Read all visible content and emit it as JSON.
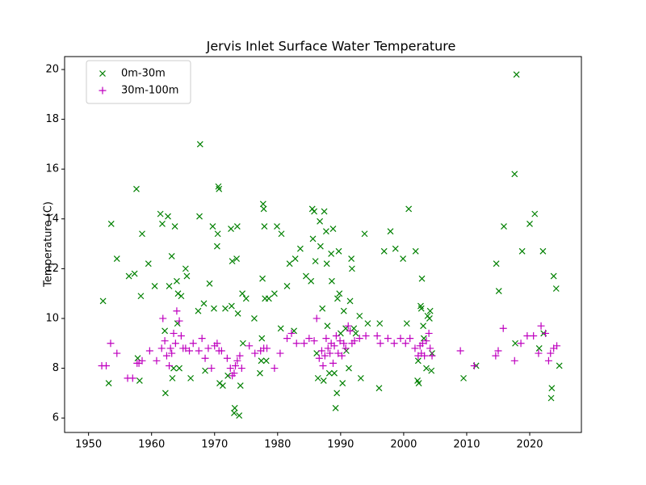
{
  "chart_data": {
    "type": "scatter",
    "title": "Jervis Inlet Surface Water Temperature",
    "y_label": "Temperature (C)",
    "xlim": [
      1946.2,
      2028.2
    ],
    "ylim": [
      5.42,
      20.52
    ],
    "xticks": [
      1950,
      1960,
      1970,
      1980,
      1990,
      2000,
      2010,
      2020
    ],
    "yticks": [
      6,
      8,
      10,
      12,
      14,
      16,
      18,
      20
    ],
    "grid": false,
    "legend": "upper left",
    "series": [
      {
        "name": "0m-30m",
        "color": "#008000",
        "marker": "x",
        "x": [
          1952.3,
          1953.2,
          1953.6,
          1954.5,
          1956.4,
          1957.3,
          1957.6,
          1957.8,
          1958.1,
          1958.5,
          1958.3,
          1959.5,
          1960.5,
          1961.4,
          1961.7,
          1962.1,
          1962.2,
          1962.6,
          1962.8,
          1963.2,
          1963.3,
          1963.5,
          1963.7,
          1964.0,
          1964.1,
          1964.2,
          1964.4,
          1964.7,
          1965.4,
          1965.6,
          1966.2,
          1967.4,
          1967.7,
          1967.6,
          1968.3,
          1968.5,
          1969.2,
          1969.7,
          1969.9,
          1970.4,
          1970.5,
          1970.6,
          1970.7,
          1970.8,
          1971.3,
          1971.7,
          1972.1,
          1972.6,
          1972.7,
          1972.8,
          1973.2,
          1973.1,
          1973.5,
          1973.6,
          1973.7,
          1973.9,
          1974.1,
          1974.4,
          1974.5,
          1975.0,
          1976.3,
          1977.2,
          1977.4,
          1977.5,
          1977.6,
          1977.7,
          1977.8,
          1977.9,
          1978.0,
          1978.2,
          1978.6,
          1979.5,
          1979.9,
          1980.6,
          1981.5,
          1980.5,
          1981.9,
          1982.8,
          1983.6,
          1982.6,
          1984.5,
          1985.3,
          1985.5,
          1985.8,
          1985.6,
          1986.0,
          1986.2,
          1986.4,
          1986.7,
          1986.8,
          1987.1,
          1987.3,
          1987.4,
          1987.7,
          1987.8,
          1987.9,
          1988.2,
          1988.5,
          1988.6,
          1988.8,
          1989.0,
          1989.2,
          1989.4,
          1989.5,
          1989.7,
          1989.8,
          1990.0,
          1990.3,
          1990.5,
          1990.8,
          1990.9,
          1991.3,
          1991.5,
          1991.7,
          1991.8,
          1992.1,
          1992.4,
          1993.0,
          1993.2,
          1993.8,
          1994.3,
          1996.1,
          1996.2,
          1996.9,
          1997.9,
          1998.7,
          1999.9,
          2000.8,
          2000.5,
          2001.9,
          2002.3,
          2002.2,
          2002.4,
          2002.7,
          2002.8,
          2002.9,
          2003.1,
          2003.2,
          2003.6,
          2003.8,
          2004.1,
          2004.2,
          2004.4,
          2004.5,
          2009.5,
          2011.5,
          2014.7,
          2015.1,
          2015.9,
          2017.7,
          2017.6,
          2017.9,
          2018.8,
          2020.0,
          2020.8,
          2021.5,
          2022.1,
          2022.2,
          2023.5,
          2023.4,
          2023.8,
          2024.2,
          2024.7
        ],
        "values": [
          10.7,
          7.4,
          13.8,
          12.4,
          11.7,
          11.8,
          15.2,
          8.4,
          7.5,
          13.4,
          10.9,
          12.2,
          11.3,
          14.2,
          13.8,
          9.5,
          7.0,
          14.1,
          11.3,
          12.5,
          7.6,
          8.0,
          13.7,
          11.5,
          9.8,
          11.0,
          8.0,
          10.9,
          12.0,
          11.7,
          7.6,
          10.3,
          17.0,
          14.1,
          10.6,
          7.9,
          11.4,
          13.7,
          10.4,
          12.9,
          13.4,
          15.3,
          15.2,
          7.4,
          7.3,
          10.4,
          7.7,
          13.6,
          10.5,
          12.3,
          6.4,
          6.2,
          12.4,
          13.7,
          10.2,
          6.1,
          7.3,
          11.0,
          9.0,
          10.8,
          10.0,
          7.8,
          8.3,
          9.2,
          11.6,
          14.6,
          14.4,
          13.7,
          10.8,
          8.3,
          10.8,
          11.0,
          13.7,
          13.4,
          11.3,
          9.6,
          12.2,
          12.4,
          12.8,
          9.5,
          11.7,
          11.5,
          14.4,
          14.3,
          13.2,
          12.3,
          8.6,
          7.6,
          13.9,
          12.9,
          10.4,
          7.5,
          14.3,
          13.5,
          12.2,
          9.7,
          7.8,
          12.6,
          11.5,
          13.6,
          7.8,
          6.4,
          7.0,
          10.8,
          12.7,
          11.0,
          9.4,
          7.4,
          10.3,
          9.6,
          8.7,
          8.0,
          10.7,
          12.4,
          12.0,
          9.6,
          9.4,
          10.1,
          7.6,
          13.4,
          9.8,
          7.2,
          9.8,
          12.7,
          13.5,
          12.8,
          12.4,
          14.4,
          9.8,
          12.7,
          8.3,
          7.5,
          7.4,
          10.5,
          10.4,
          11.6,
          9.7,
          9.2,
          8.0,
          10.1,
          10.0,
          10.3,
          7.9,
          8.6,
          7.6,
          8.1,
          12.2,
          11.1,
          13.7,
          9.0,
          15.8,
          19.8,
          12.7,
          13.8,
          14.2,
          8.8,
          12.7,
          9.4,
          7.2,
          6.8,
          11.7,
          11.2,
          8.1
        ]
      },
      {
        "name": "30m-100m",
        "color": "#bf00bf",
        "marker": "+",
        "x": [
          1952.1,
          1952.8,
          1953.5,
          1954.5,
          1956.2,
          1957.0,
          1957.7,
          1958.0,
          1958.5,
          1959.7,
          1960.8,
          1961.6,
          1961.8,
          1962.1,
          1962.4,
          1962.8,
          1963.0,
          1963.2,
          1963.5,
          1963.8,
          1964.0,
          1964.4,
          1964.7,
          1965.0,
          1965.4,
          1966.0,
          1966.6,
          1967.5,
          1968.0,
          1968.5,
          1969.0,
          1969.5,
          1970.0,
          1970.4,
          1970.7,
          1971.1,
          1972.0,
          1972.5,
          1972.8,
          1973.1,
          1973.3,
          1973.6,
          1974.0,
          1974.3,
          1975.5,
          1976.4,
          1977.3,
          1977.8,
          1978.3,
          1979.5,
          1980.4,
          1981.5,
          1982.2,
          1983.0,
          1984.2,
          1985.0,
          1985.8,
          1986.2,
          1986.6,
          1987.0,
          1987.2,
          1987.5,
          1987.7,
          1988.0,
          1988.3,
          1988.5,
          1988.8,
          1989.0,
          1989.3,
          1989.6,
          1989.9,
          1990.2,
          1990.5,
          1990.8,
          1991.2,
          1991.5,
          1991.8,
          1992.2,
          1993.0,
          1994.0,
          1995.8,
          1996.3,
          1997.5,
          1998.5,
          1999.5,
          2000.3,
          2001.0,
          2001.8,
          2002.3,
          2002.6,
          2002.8,
          2003.0,
          2003.3,
          2003.6,
          2004.0,
          2004.2,
          2004.5,
          2009.0,
          2011.2,
          2014.6,
          2015.0,
          2015.8,
          2017.6,
          2018.6,
          2019.6,
          2020.6,
          2021.4,
          2021.8,
          2022.5,
          2023.0,
          2023.3,
          2023.8,
          2024.3
        ],
        "values": [
          8.1,
          8.1,
          9.0,
          8.6,
          7.6,
          7.6,
          8.2,
          8.2,
          8.3,
          8.7,
          8.3,
          8.8,
          10.0,
          9.1,
          8.5,
          8.1,
          8.8,
          8.6,
          9.4,
          9.0,
          10.3,
          9.9,
          9.3,
          8.8,
          8.8,
          8.7,
          9.0,
          8.7,
          9.2,
          8.4,
          8.8,
          8.0,
          8.9,
          9.0,
          8.7,
          8.7,
          8.4,
          8.0,
          7.7,
          7.8,
          8.1,
          8.3,
          8.5,
          8.0,
          8.9,
          8.6,
          8.7,
          8.8,
          8.8,
          8.0,
          8.6,
          9.2,
          9.4,
          9.0,
          9.0,
          9.2,
          9.1,
          10.0,
          8.4,
          8.7,
          8.1,
          8.5,
          9.2,
          8.8,
          8.6,
          9.0,
          8.2,
          8.9,
          9.3,
          8.6,
          9.1,
          8.5,
          9.0,
          8.8,
          9.7,
          9.5,
          9.0,
          9.1,
          9.2,
          9.3,
          9.3,
          9.0,
          9.2,
          9.0,
          9.2,
          9.0,
          9.2,
          8.8,
          8.5,
          8.9,
          8.6,
          9.0,
          8.5,
          9.1,
          9.4,
          8.8,
          8.5,
          8.7,
          8.1,
          8.5,
          8.7,
          9.6,
          8.3,
          9.0,
          9.3,
          9.3,
          8.6,
          9.7,
          9.4,
          8.3,
          8.6,
          8.8,
          8.9
        ]
      }
    ]
  }
}
